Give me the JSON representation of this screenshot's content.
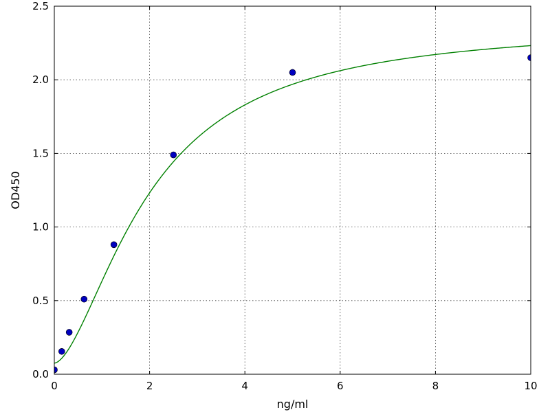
{
  "chart_data": {
    "type": "scatter",
    "title": "",
    "xlabel": "ng/ml",
    "ylabel": "OD450",
    "xlim": [
      0,
      10
    ],
    "ylim": [
      0,
      2.5
    ],
    "xticks": [
      0,
      2,
      4,
      6,
      8,
      10
    ],
    "yticks": [
      0.0,
      0.5,
      1.0,
      1.5,
      2.0,
      2.5
    ],
    "xtick_labels": [
      "0",
      "2",
      "4",
      "6",
      "8",
      "10"
    ],
    "ytick_labels": [
      "0.0",
      "0.5",
      "1.0",
      "1.5",
      "2.0",
      "2.5"
    ],
    "grid": true,
    "series": [
      {
        "kind": "points",
        "color": "#0000bf",
        "x": [
          0,
          0.156,
          0.3125,
          0.625,
          1.25,
          2.5,
          5,
          10
        ],
        "y": [
          0.03,
          0.155,
          0.285,
          0.51,
          0.88,
          1.49,
          2.05,
          2.15
        ]
      },
      {
        "kind": "fit-curve",
        "color": "#008000",
        "model": "4PL",
        "params": {
          "A": 0.075,
          "B": 1.66,
          "C": 1.99,
          "D": 2.38
        },
        "x_range": [
          0,
          10
        ]
      }
    ]
  }
}
